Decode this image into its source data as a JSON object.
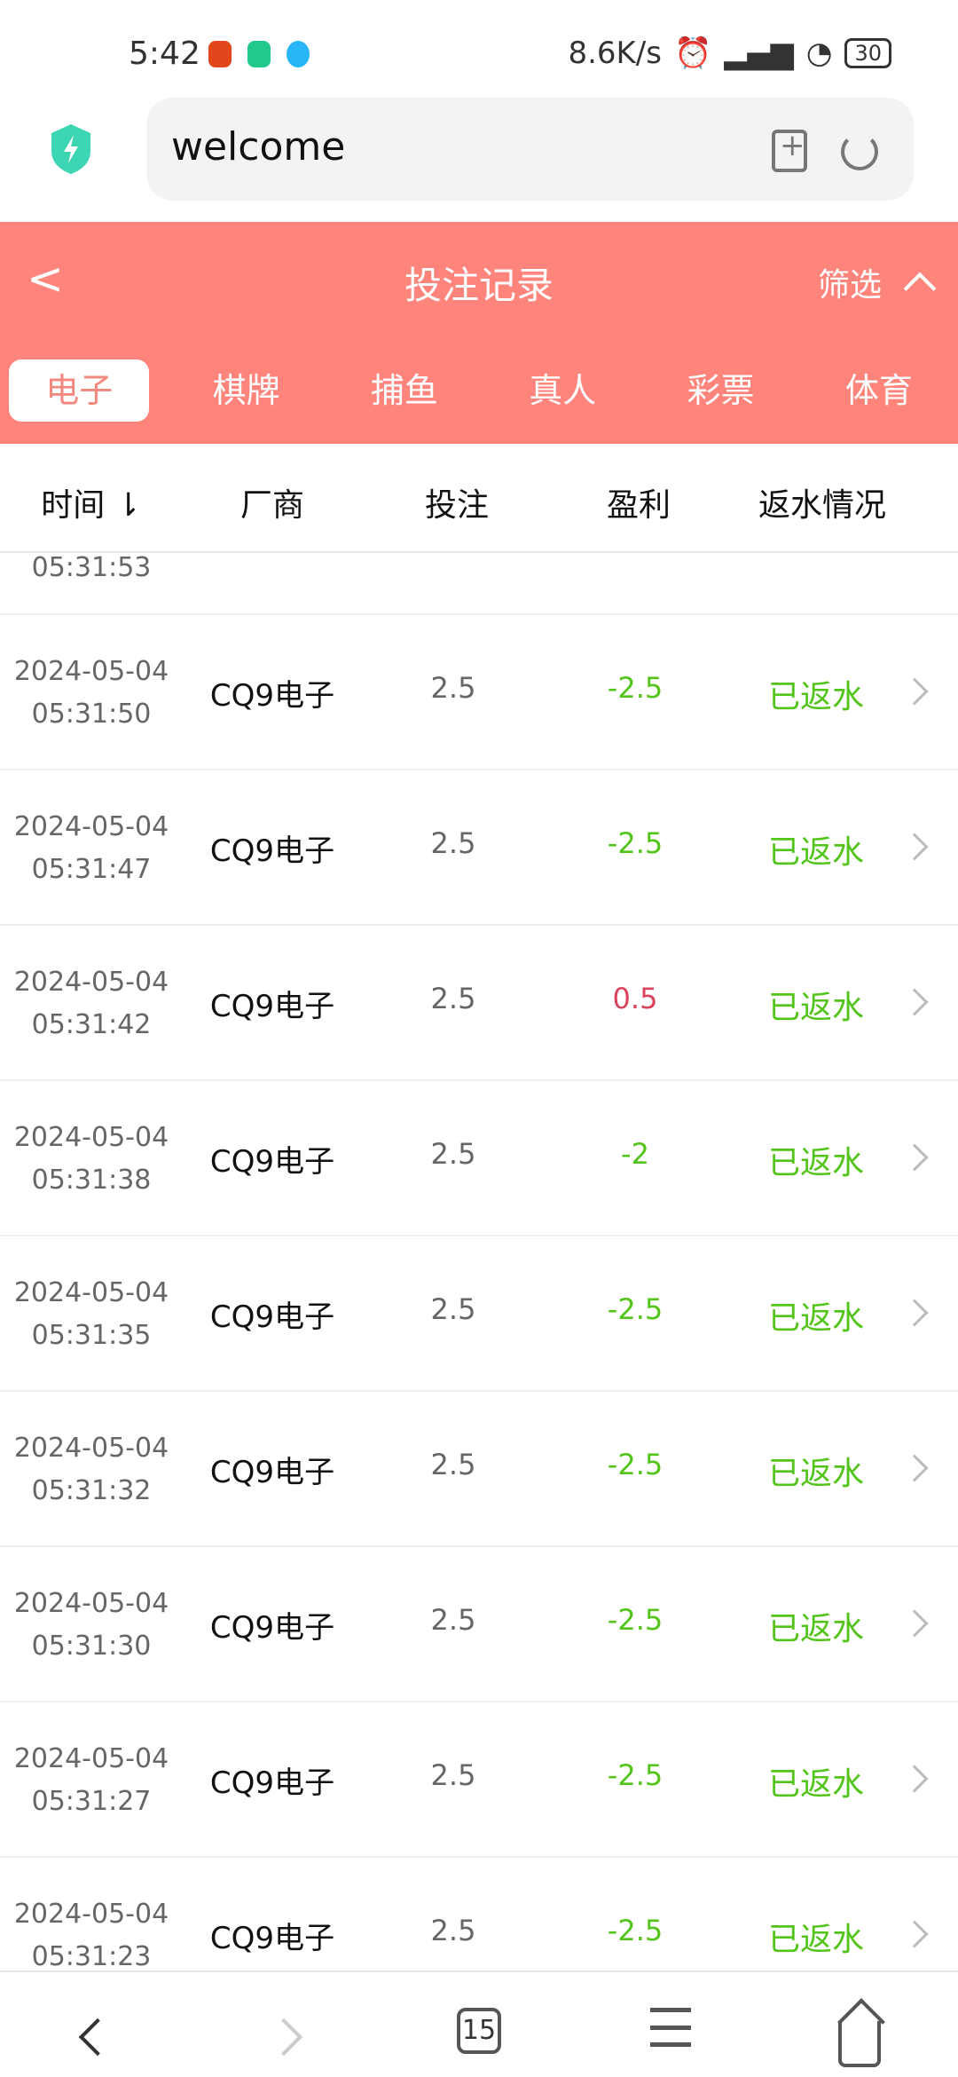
{
  "status_bar": {
    "time": "5:42",
    "net_speed": "8.6K/s",
    "battery": "30"
  },
  "browser": {
    "url_text": "welcome",
    "tab_count": "15"
  },
  "header": {
    "title": "投注记录",
    "filter_label": "筛选",
    "accent": "#ff847c"
  },
  "tabs": [
    {
      "label": "电子",
      "active": true
    },
    {
      "label": "棋牌"
    },
    {
      "label": "捕鱼"
    },
    {
      "label": "真人"
    },
    {
      "label": "彩票"
    },
    {
      "label": "体育"
    }
  ],
  "columns": {
    "time": "时间 ⇂",
    "vendor": "厂商",
    "bet": "投注",
    "profit": "盈利",
    "rebate": "返水情况"
  },
  "partial_row": {
    "time": "05:31:53"
  },
  "rows": [
    {
      "date": "2024-05-04",
      "time": "05:31:50",
      "vendor": "CQ9电子",
      "bet": "2.5",
      "profit": "-2.5",
      "status": "已返水"
    },
    {
      "date": "2024-05-04",
      "time": "05:31:47",
      "vendor": "CQ9电子",
      "bet": "2.5",
      "profit": "-2.5",
      "status": "已返水"
    },
    {
      "date": "2024-05-04",
      "time": "05:31:42",
      "vendor": "CQ9电子",
      "bet": "2.5",
      "profit": "0.5",
      "status": "已返水"
    },
    {
      "date": "2024-05-04",
      "time": "05:31:38",
      "vendor": "CQ9电子",
      "bet": "2.5",
      "profit": "-2",
      "status": "已返水"
    },
    {
      "date": "2024-05-04",
      "time": "05:31:35",
      "vendor": "CQ9电子",
      "bet": "2.5",
      "profit": "-2.5",
      "status": "已返水"
    },
    {
      "date": "2024-05-04",
      "time": "05:31:32",
      "vendor": "CQ9电子",
      "bet": "2.5",
      "profit": "-2.5",
      "status": "已返水"
    },
    {
      "date": "2024-05-04",
      "time": "05:31:30",
      "vendor": "CQ9电子",
      "bet": "2.5",
      "profit": "-2.5",
      "status": "已返水"
    },
    {
      "date": "2024-05-04",
      "time": "05:31:27",
      "vendor": "CQ9电子",
      "bet": "2.5",
      "profit": "-2.5",
      "status": "已返水"
    },
    {
      "date": "2024-05-04",
      "time": "05:31:23",
      "vendor": "CQ9电子",
      "bet": "2.5",
      "profit": "-2.5",
      "status": "已返水"
    }
  ],
  "colors": {
    "loss": "#52c41a",
    "win": "#d9435c",
    "rebated": "#52c41a"
  }
}
